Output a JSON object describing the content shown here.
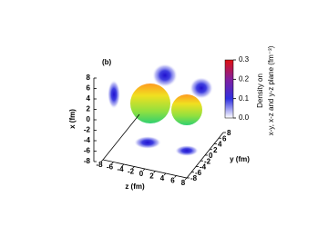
{
  "chart_data": {
    "type": "surface3d",
    "panel_label": "(b)",
    "xlabel": "x (fm)",
    "ylabel": "y (fm)",
    "zlabel": "z (fm)",
    "xlim": [
      -8,
      8
    ],
    "xticks": [
      -8,
      -6,
      -4,
      -2,
      0,
      2,
      4,
      6,
      8
    ],
    "ylim": [
      -8,
      8
    ],
    "yticks": [
      -8,
      -6,
      -4,
      -2,
      0,
      2,
      4,
      6,
      8
    ],
    "zlim": [
      -8,
      8
    ],
    "zticks": [
      -8,
      -6,
      -4,
      -2,
      0,
      2,
      4,
      6,
      8
    ],
    "colorbar": {
      "label_lines": [
        "Density on",
        "x-y, x-z and y-z plane (fm⁻³)"
      ],
      "lim": [
        0,
        0.3
      ],
      "ticks": [
        {
          "value": 0,
          "label": "0.0"
        },
        0.1,
        0.2,
        0.3
      ]
    }
  }
}
